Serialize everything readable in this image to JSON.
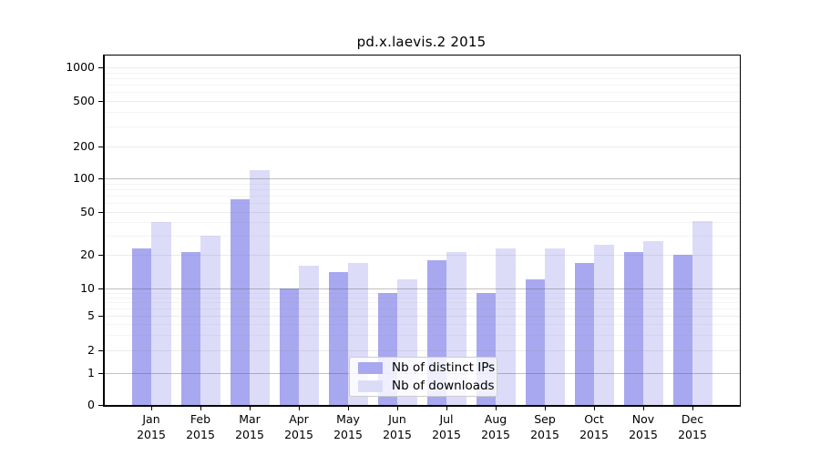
{
  "chart_data": {
    "type": "bar",
    "title": "pd.x.laevis.2 2015",
    "categories": [
      "Jan",
      "Feb",
      "Mar",
      "Apr",
      "May",
      "Jun",
      "Jul",
      "Aug",
      "Sep",
      "Oct",
      "Nov",
      "Dec"
    ],
    "year": "2015",
    "series": [
      {
        "name": "Nb of distinct IPs",
        "color": "#a8a8f0",
        "values": [
          23,
          21,
          65,
          10,
          14,
          9,
          18,
          9,
          12,
          17,
          21,
          20
        ]
      },
      {
        "name": "Nb of downloads",
        "color": "#dcdcf9",
        "values": [
          40,
          30,
          120,
          16,
          17,
          12,
          21,
          23,
          23,
          25,
          27,
          41
        ]
      }
    ],
    "y_ticks": [
      0,
      1,
      2,
      5,
      10,
      20,
      50,
      100,
      200,
      500,
      1000
    ],
    "ylim": [
      0,
      1300
    ],
    "legend_position": "lower center",
    "grid": "horizontal"
  }
}
